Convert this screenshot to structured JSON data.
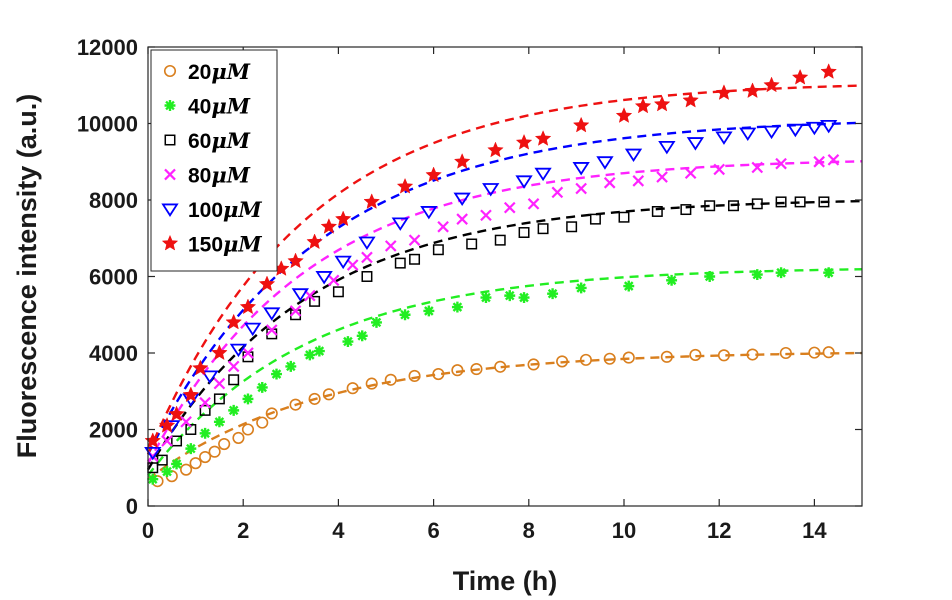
{
  "chart_data": {
    "type": "scatter",
    "title": "",
    "xlabel": "Time (h)",
    "ylabel": "Fluorescence intensity (a.u.)",
    "xlim": [
      0,
      15
    ],
    "ylim": [
      0,
      12000
    ],
    "xticks": [
      0,
      2,
      4,
      6,
      8,
      10,
      12,
      14
    ],
    "yticks": [
      0,
      2000,
      4000,
      6000,
      8000,
      10000,
      12000
    ],
    "xtick_labels": [
      "0",
      "2",
      "4",
      "6",
      "8",
      "10",
      "12",
      "14"
    ],
    "ytick_labels": [
      "0",
      "2000",
      "4000",
      "6000",
      "8000",
      "10000",
      "12000"
    ],
    "grid": false,
    "legend_position": "top-left",
    "series": [
      {
        "name": "20μM",
        "label_num": "20",
        "label_unit": "μM",
        "marker": "circle",
        "color": "#d97f1e",
        "fit": {
          "A0": 700,
          "Amax": 4050,
          "k": 0.28
        },
        "points": [
          [
            0.2,
            650
          ],
          [
            0.5,
            780
          ],
          [
            0.8,
            950
          ],
          [
            1.0,
            1120
          ],
          [
            1.2,
            1280
          ],
          [
            1.4,
            1420
          ],
          [
            1.6,
            1620
          ],
          [
            1.9,
            1780
          ],
          [
            2.1,
            2000
          ],
          [
            2.4,
            2180
          ],
          [
            2.6,
            2420
          ],
          [
            3.1,
            2650
          ],
          [
            3.5,
            2800
          ],
          [
            3.8,
            2920
          ],
          [
            4.3,
            3080
          ],
          [
            4.7,
            3200
          ],
          [
            5.1,
            3300
          ],
          [
            5.6,
            3400
          ],
          [
            6.1,
            3450
          ],
          [
            6.5,
            3550
          ],
          [
            6.9,
            3580
          ],
          [
            7.4,
            3640
          ],
          [
            8.1,
            3700
          ],
          [
            8.7,
            3780
          ],
          [
            9.2,
            3820
          ],
          [
            9.7,
            3850
          ],
          [
            10.1,
            3880
          ],
          [
            10.9,
            3900
          ],
          [
            11.5,
            3950
          ],
          [
            12.1,
            3940
          ],
          [
            12.7,
            3960
          ],
          [
            13.4,
            4000
          ],
          [
            14.0,
            4010
          ],
          [
            14.3,
            4020
          ]
        ]
      },
      {
        "name": "40μM",
        "label_num": "40",
        "label_unit": "μM",
        "marker": "asterisk",
        "color": "#22ee22",
        "fit": {
          "A0": 800,
          "Amax": 6250,
          "k": 0.3
        },
        "points": [
          [
            0.1,
            700
          ],
          [
            0.4,
            900
          ],
          [
            0.6,
            1100
          ],
          [
            0.9,
            1500
          ],
          [
            1.2,
            1900
          ],
          [
            1.5,
            2200
          ],
          [
            1.8,
            2500
          ],
          [
            2.1,
            2800
          ],
          [
            2.4,
            3100
          ],
          [
            2.7,
            3450
          ],
          [
            3.0,
            3650
          ],
          [
            3.4,
            3950
          ],
          [
            3.6,
            4050
          ],
          [
            4.2,
            4300
          ],
          [
            4.5,
            4450
          ],
          [
            4.8,
            4800
          ],
          [
            5.4,
            5000
          ],
          [
            5.9,
            5100
          ],
          [
            6.5,
            5200
          ],
          [
            7.1,
            5450
          ],
          [
            7.6,
            5500
          ],
          [
            7.9,
            5450
          ],
          [
            8.5,
            5550
          ],
          [
            9.1,
            5700
          ],
          [
            10.1,
            5750
          ],
          [
            11.0,
            5900
          ],
          [
            11.8,
            6000
          ],
          [
            12.8,
            6050
          ],
          [
            13.3,
            6100
          ],
          [
            14.3,
            6100
          ]
        ]
      },
      {
        "name": "60μM",
        "label_num": "60",
        "label_unit": "μM",
        "marker": "square",
        "color": "#000000",
        "fit": {
          "A0": 950,
          "Amax": 8050,
          "k": 0.3
        },
        "points": [
          [
            0.1,
            1000
          ],
          [
            0.3,
            1200
          ],
          [
            0.6,
            1700
          ],
          [
            0.9,
            2000
          ],
          [
            1.2,
            2500
          ],
          [
            1.5,
            2800
          ],
          [
            1.8,
            3300
          ],
          [
            2.1,
            3900
          ],
          [
            2.6,
            4500
          ],
          [
            3.1,
            5000
          ],
          [
            3.5,
            5350
          ],
          [
            4.0,
            5600
          ],
          [
            4.6,
            6000
          ],
          [
            5.3,
            6350
          ],
          [
            5.6,
            6450
          ],
          [
            6.1,
            6700
          ],
          [
            6.8,
            6850
          ],
          [
            7.4,
            6950
          ],
          [
            7.9,
            7150
          ],
          [
            8.3,
            7250
          ],
          [
            8.9,
            7300
          ],
          [
            9.4,
            7500
          ],
          [
            10.0,
            7550
          ],
          [
            10.7,
            7700
          ],
          [
            11.3,
            7750
          ],
          [
            11.8,
            7850
          ],
          [
            12.3,
            7850
          ],
          [
            12.8,
            7900
          ],
          [
            13.3,
            7950
          ],
          [
            13.7,
            7950
          ],
          [
            14.2,
            7950
          ]
        ]
      },
      {
        "name": "80μM",
        "label_num": "80",
        "label_unit": "μM",
        "marker": "x",
        "color": "#ff22ff",
        "fit": {
          "A0": 1100,
          "Amax": 9100,
          "k": 0.3
        },
        "points": [
          [
            0.1,
            1300
          ],
          [
            0.4,
            1700
          ],
          [
            0.8,
            2200
          ],
          [
            1.2,
            2700
          ],
          [
            1.5,
            3200
          ],
          [
            1.8,
            3650
          ],
          [
            2.1,
            4000
          ],
          [
            2.6,
            4600
          ],
          [
            3.1,
            5100
          ],
          [
            3.4,
            5500
          ],
          [
            3.9,
            5900
          ],
          [
            4.3,
            6300
          ],
          [
            4.6,
            6500
          ],
          [
            5.1,
            6800
          ],
          [
            5.6,
            6950
          ],
          [
            6.2,
            7300
          ],
          [
            6.6,
            7500
          ],
          [
            7.1,
            7600
          ],
          [
            7.6,
            7800
          ],
          [
            8.1,
            7900
          ],
          [
            8.6,
            8200
          ],
          [
            9.1,
            8300
          ],
          [
            9.7,
            8450
          ],
          [
            10.3,
            8500
          ],
          [
            10.8,
            8600
          ],
          [
            11.4,
            8700
          ],
          [
            12.0,
            8800
          ],
          [
            12.8,
            8850
          ],
          [
            13.3,
            8950
          ],
          [
            14.1,
            9000
          ],
          [
            14.4,
            9050
          ]
        ]
      },
      {
        "name": "100μM",
        "label_num": "100",
        "label_unit": "μM",
        "marker": "triangle-down",
        "color": "#0000ff",
        "fit": {
          "A0": 1350,
          "Amax": 10150,
          "k": 0.28
        },
        "points": [
          [
            0.1,
            1400
          ],
          [
            0.5,
            2100
          ],
          [
            0.9,
            2800
          ],
          [
            1.3,
            3400
          ],
          [
            1.9,
            4100
          ],
          [
            2.2,
            4650
          ],
          [
            2.6,
            5050
          ],
          [
            3.2,
            5550
          ],
          [
            3.7,
            6000
          ],
          [
            4.1,
            6400
          ],
          [
            4.6,
            6900
          ],
          [
            5.3,
            7400
          ],
          [
            5.9,
            7700
          ],
          [
            6.6,
            8050
          ],
          [
            7.2,
            8300
          ],
          [
            7.9,
            8500
          ],
          [
            8.3,
            8700
          ],
          [
            9.1,
            8850
          ],
          [
            9.6,
            9000
          ],
          [
            10.2,
            9200
          ],
          [
            10.9,
            9400
          ],
          [
            11.5,
            9500
          ],
          [
            12.1,
            9650
          ],
          [
            12.6,
            9750
          ],
          [
            13.1,
            9800
          ],
          [
            13.6,
            9850
          ],
          [
            14.0,
            9900
          ],
          [
            14.3,
            9950
          ]
        ]
      },
      {
        "name": "150μM",
        "label_num": "150",
        "label_unit": "μM",
        "marker": "star",
        "color": "#ee1111",
        "fit": {
          "A0": 1350,
          "Amax": 11100,
          "k": 0.3
        },
        "points": [
          [
            0.1,
            1700
          ],
          [
            0.4,
            2100
          ],
          [
            0.6,
            2400
          ],
          [
            0.9,
            2900
          ],
          [
            1.1,
            3600
          ],
          [
            1.5,
            4000
          ],
          [
            1.8,
            4800
          ],
          [
            2.1,
            5200
          ],
          [
            2.5,
            5800
          ],
          [
            2.8,
            6200
          ],
          [
            3.1,
            6400
          ],
          [
            3.5,
            6900
          ],
          [
            3.8,
            7300
          ],
          [
            4.1,
            7500
          ],
          [
            4.7,
            7950
          ],
          [
            5.4,
            8350
          ],
          [
            6.0,
            8650
          ],
          [
            6.6,
            9000
          ],
          [
            7.3,
            9300
          ],
          [
            7.9,
            9500
          ],
          [
            8.3,
            9600
          ],
          [
            9.1,
            9950
          ],
          [
            10.0,
            10200
          ],
          [
            10.4,
            10450
          ],
          [
            10.8,
            10500
          ],
          [
            11.4,
            10600
          ],
          [
            12.1,
            10800
          ],
          [
            12.7,
            10850
          ],
          [
            13.1,
            11000
          ],
          [
            13.7,
            11200
          ],
          [
            14.3,
            11350
          ]
        ]
      }
    ]
  }
}
